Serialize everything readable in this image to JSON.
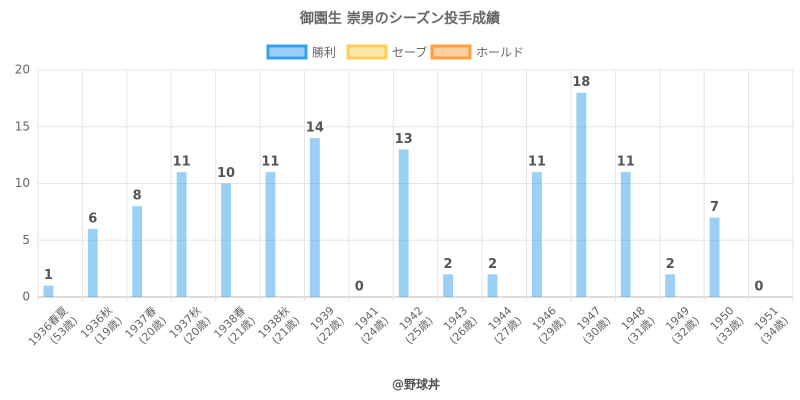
{
  "chart_data": {
    "type": "bar",
    "title": "御園生 崇男のシーズン投手成績",
    "categories": [
      [
        "1936春夏",
        "(53歳)"
      ],
      [
        "1936秋",
        "(19歳)"
      ],
      [
        "1937春",
        "(20歳)"
      ],
      [
        "1937秋",
        "(20歳)"
      ],
      [
        "1938春",
        "(21歳)"
      ],
      [
        "1938秋",
        "(21歳)"
      ],
      [
        "1939",
        "(22歳)"
      ],
      [
        "1941",
        "(24歳)"
      ],
      [
        "1942",
        "(25歳)"
      ],
      [
        "1943",
        "(26歳)"
      ],
      [
        "1944",
        "(27歳)"
      ],
      [
        "1946",
        "(29歳)"
      ],
      [
        "1947",
        "(30歳)"
      ],
      [
        "1948",
        "(31歳)"
      ],
      [
        "1949",
        "(32歳)"
      ],
      [
        "1950",
        "(33歳)"
      ],
      [
        "1951",
        "(34歳)"
      ]
    ],
    "series": [
      {
        "name": "勝利",
        "color": "#36a2eb",
        "values": [
          1,
          6,
          8,
          11,
          10,
          11,
          14,
          0,
          13,
          2,
          2,
          11,
          18,
          11,
          2,
          7,
          0
        ]
      },
      {
        "name": "セーブ",
        "color": "#ffce56",
        "values": [
          null,
          null,
          null,
          null,
          null,
          null,
          null,
          null,
          null,
          null,
          null,
          null,
          null,
          null,
          null,
          null,
          null
        ]
      },
      {
        "name": "ホールド",
        "color": "#ff9f40",
        "values": [
          null,
          null,
          null,
          null,
          null,
          null,
          null,
          null,
          null,
          null,
          null,
          null,
          null,
          null,
          null,
          null,
          null
        ]
      }
    ],
    "ylim": [
      0,
      20
    ],
    "yticks": [
      0,
      5,
      10,
      15,
      20
    ],
    "grid": true,
    "legend": "top",
    "footer": "@野球丼"
  }
}
